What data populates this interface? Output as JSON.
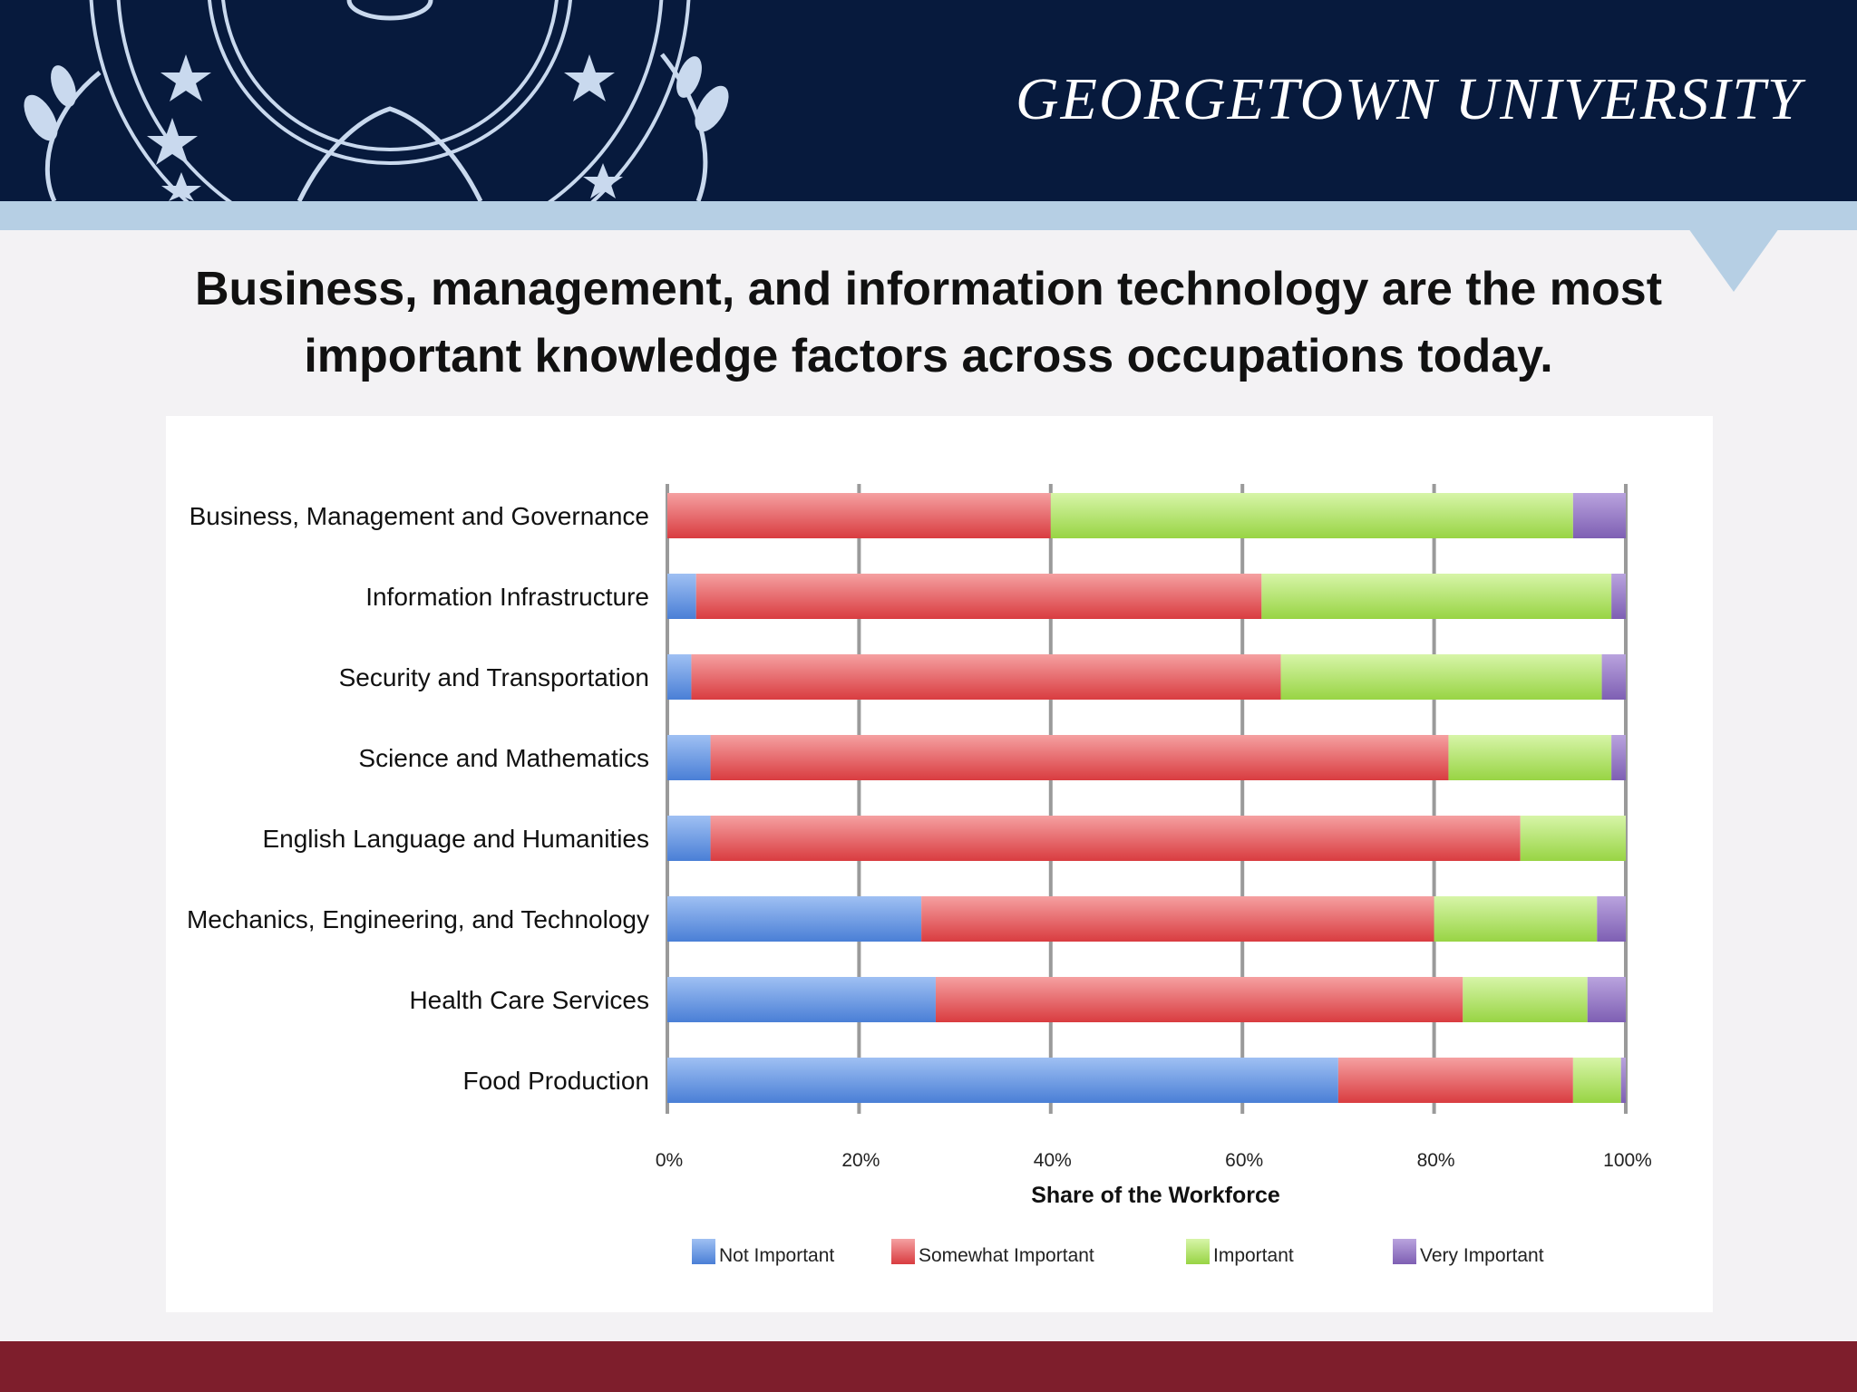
{
  "header": {
    "wordmark": "GEORGETOWN UNIVERSITY",
    "colors": {
      "navy": "#071a3d",
      "stripe": "#b6cfe4",
      "footer": "#7e1e2c"
    },
    "logo": "university-seal-icon"
  },
  "slide": {
    "title_line1": "Business, management, and information technology are the most",
    "title_line2": "important knowledge factors across occupations today."
  },
  "chart_data": {
    "type": "bar",
    "orientation": "horizontal",
    "stacked": true,
    "categories": [
      "Business, Management and Governance",
      "Information Infrastructure",
      "Security and Transportation",
      "Science and Mathematics",
      "English Language and Humanities",
      "Mechanics, Engineering, and Technology",
      "Health Care Services",
      "Food Production"
    ],
    "series": [
      {
        "name": "Not Important",
        "color": "#5b8fe0",
        "values": [
          0,
          3,
          2.5,
          4.5,
          4.5,
          26.5,
          28,
          70
        ]
      },
      {
        "name": "Somewhat Important",
        "color": "#e04b4e",
        "values": [
          40,
          59,
          61.5,
          77,
          84.5,
          53.5,
          55,
          24.5
        ]
      },
      {
        "name": "Important",
        "color": "#a8e05a",
        "values": [
          54.5,
          36.5,
          33.5,
          17,
          11,
          17,
          13,
          5
        ]
      },
      {
        "name": "Very Important",
        "color": "#8e6fbe",
        "values": [
          5.5,
          1.5,
          2.5,
          1.5,
          0,
          3,
          4,
          0.5
        ]
      }
    ],
    "xlabel": "Share of the Workforce",
    "ylabel": "",
    "xlim": [
      0,
      100
    ],
    "xticks": [
      "0%",
      "20%",
      "40%",
      "60%",
      "80%",
      "100%"
    ],
    "grid": true,
    "legend": "bottom"
  }
}
